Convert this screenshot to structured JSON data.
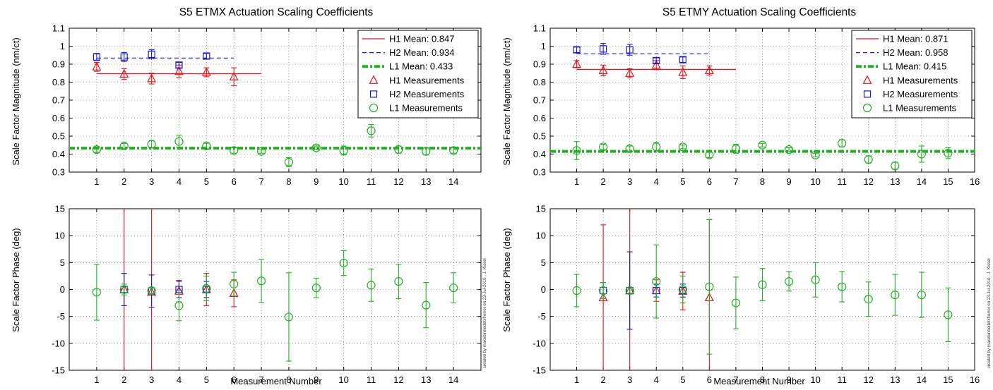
{
  "colors": {
    "H1": "#e8141c",
    "H2": "#1a1ad9",
    "L1": "#22b022"
  },
  "charts": {
    "x": {
      "title": "S5 ETMX Actuation Scaling Coefficients",
      "xlabel": "Measurement Number",
      "xticks": [
        "1",
        "2",
        "3",
        "4",
        "5",
        "6",
        "7",
        "8",
        "9",
        "10",
        "11",
        "12",
        "13",
        "14"
      ],
      "xlim": [
        0,
        15
      ],
      "credit": "created by makebinnedetxfrerror on 23-Jul-2010 , J. Kissel"
    },
    "y": {
      "title": "S5 ETMY Actuation Scaling Coefficients",
      "xlabel": "Measurement Number",
      "xticks": [
        "1",
        "2",
        "3",
        "4",
        "5",
        "6",
        "7",
        "8",
        "9",
        "10",
        "11",
        "12",
        "13",
        "14",
        "15",
        "16"
      ],
      "xlim": [
        0,
        16
      ],
      "credit": "created by makebinnedetxfrerror on 23-Jul-2010 , J. Kissel"
    }
  },
  "chart_data": [
    {
      "type": "scatter",
      "title": "S5 ETMX Actuation Scaling Coefficients",
      "panel": "magnitude",
      "xlabel": "",
      "ylabel": "Scale Factor Magnitude (nm/ct)",
      "xlim": [
        0,
        15
      ],
      "ylim": [
        0.3,
        1.1
      ],
      "yticks": [
        "0.3",
        "0.4",
        "0.5",
        "0.6",
        "0.7",
        "0.8",
        "0.9",
        "1",
        "1.1"
      ],
      "grid": true,
      "legend_position": "top-right",
      "legend": [
        "H1 Mean: 0.847",
        "H2 Mean: 0.934",
        "L1 Mean: 0.433",
        "H1 Measurements",
        "H2 Measurements",
        "L1 Measurements"
      ],
      "means": [
        {
          "name": "H1 Mean: 0.847",
          "value": 0.847,
          "x_range": [
            1,
            7
          ],
          "style": "solid"
        },
        {
          "name": "H2 Mean: 0.934",
          "value": 0.934,
          "x_range": [
            1,
            6
          ],
          "style": "dashed"
        },
        {
          "name": "L1 Mean: 0.433",
          "value": 0.433,
          "x_range": [
            0,
            15
          ],
          "style": "dashdot"
        }
      ],
      "series": [
        {
          "name": "H1 Measurements",
          "marker": "triangle",
          "x": [
            1,
            2,
            3,
            4,
            5,
            6
          ],
          "y": [
            0.885,
            0.845,
            0.82,
            0.86,
            0.855,
            0.83
          ],
          "err": [
            0.025,
            0.03,
            0.03,
            0.035,
            0.025,
            0.05
          ]
        },
        {
          "name": "H2 Measurements",
          "marker": "square",
          "x": [
            1,
            2,
            3,
            4,
            5
          ],
          "y": [
            0.94,
            0.94,
            0.955,
            0.895,
            0.945
          ],
          "err": [
            0.02,
            0.025,
            0.025,
            0.015,
            0.015
          ]
        },
        {
          "name": "L1 Measurements",
          "marker": "circle",
          "x": [
            1,
            2,
            3,
            4,
            5,
            6,
            7,
            8,
            9,
            10,
            11,
            12,
            13,
            14
          ],
          "y": [
            0.425,
            0.445,
            0.455,
            0.47,
            0.445,
            0.42,
            0.415,
            0.355,
            0.435,
            0.42,
            0.53,
            0.425,
            0.415,
            0.42
          ],
          "err": [
            0.015,
            0.015,
            0.02,
            0.035,
            0.015,
            0.015,
            0.01,
            0.025,
            0.01,
            0.025,
            0.035,
            0.02,
            0.02,
            0.015
          ]
        }
      ]
    },
    {
      "type": "scatter",
      "title": "",
      "panel": "phase",
      "xlabel": "Measurement Number",
      "ylabel": "Scale Factor Phase (deg)",
      "xlim": [
        0,
        15
      ],
      "ylim": [
        -15,
        15
      ],
      "yticks": [
        "-15",
        "-10",
        "-5",
        "0",
        "5",
        "10",
        "15"
      ],
      "grid": true,
      "series": [
        {
          "name": "H1 Measurements",
          "marker": "triangle",
          "x": [
            2,
            3,
            4,
            5,
            6
          ],
          "y": [
            0,
            -0.5,
            -0.3,
            0,
            -0.7
          ],
          "err": [
            16,
            16,
            2,
            3,
            2.5
          ]
        },
        {
          "name": "H2 Measurements",
          "marker": "square",
          "x": [
            2,
            3,
            4,
            5
          ],
          "y": [
            0,
            -0.3,
            0,
            0
          ],
          "err": [
            3,
            3,
            1.5,
            1.5
          ]
        },
        {
          "name": "L1 Measurements",
          "marker": "circle",
          "x": [
            1,
            2,
            3,
            4,
            5,
            6,
            7,
            8,
            9,
            10,
            11,
            12,
            13,
            14
          ],
          "y": [
            -0.5,
            0,
            -0.2,
            -3,
            0.2,
            1,
            1.6,
            -5.1,
            0.3,
            4.9,
            0.8,
            1.5,
            -2.9,
            0.3
          ],
          "err": [
            5.2,
            1,
            0.5,
            2.8,
            2.3,
            2.2,
            4,
            8.2,
            1.8,
            2.3,
            3,
            3.2,
            4.2,
            2.8
          ]
        }
      ]
    },
    {
      "type": "scatter",
      "title": "S5 ETMY Actuation Scaling Coefficients",
      "panel": "magnitude",
      "xlabel": "",
      "ylabel": "Scale Factor Magnitude (nm/ct)",
      "xlim": [
        0,
        16
      ],
      "ylim": [
        0.3,
        1.1
      ],
      "yticks": [
        "0.3",
        "0.4",
        "0.5",
        "0.6",
        "0.7",
        "0.8",
        "0.9",
        "1",
        "1.1"
      ],
      "grid": true,
      "legend_position": "top-right",
      "legend": [
        "H1 Mean: 0.871",
        "H2 Mean: 0.958",
        "L1 Mean: 0.415",
        "H1 Measurements",
        "H2 Measurements",
        "L1 Measurements"
      ],
      "means": [
        {
          "name": "H1 Mean: 0.871",
          "value": 0.871,
          "x_range": [
            1,
            7
          ],
          "style": "solid"
        },
        {
          "name": "H2 Mean: 0.958",
          "value": 0.958,
          "x_range": [
            1,
            6
          ],
          "style": "dashed"
        },
        {
          "name": "L1 Mean: 0.415",
          "value": 0.415,
          "x_range": [
            0,
            16
          ],
          "style": "dashdot"
        }
      ],
      "series": [
        {
          "name": "H1 Measurements",
          "marker": "triangle",
          "x": [
            1,
            2,
            3,
            4,
            5,
            6
          ],
          "y": [
            0.9,
            0.865,
            0.85,
            0.895,
            0.855,
            0.865
          ],
          "err": [
            0.02,
            0.03,
            0.025,
            0.025,
            0.035,
            0.025
          ]
        },
        {
          "name": "H2 Measurements",
          "marker": "square",
          "x": [
            1,
            2,
            3,
            4,
            5
          ],
          "y": [
            0.98,
            0.985,
            0.98,
            0.92,
            0.925
          ],
          "err": [
            0.015,
            0.03,
            0.03,
            0.015,
            0.015
          ]
        },
        {
          "name": "L1 Measurements",
          "marker": "circle",
          "x": [
            1,
            2,
            3,
            4,
            5,
            6,
            7,
            8,
            9,
            10,
            11,
            12,
            13,
            14,
            15
          ],
          "y": [
            0.42,
            0.44,
            0.43,
            0.44,
            0.44,
            0.395,
            0.43,
            0.45,
            0.425,
            0.395,
            0.46,
            0.37,
            0.335,
            0.4,
            0.405
          ],
          "err": [
            0.05,
            0.015,
            0.015,
            0.025,
            0.01,
            0.015,
            0.025,
            0.01,
            0.01,
            0.01,
            0.02,
            0.02,
            0.02,
            0.045,
            0.03
          ]
        }
      ]
    },
    {
      "type": "scatter",
      "title": "",
      "panel": "phase",
      "xlabel": "Measurement Number",
      "ylabel": "Scale Factor Phase (deg)",
      "xlim": [
        0,
        16
      ],
      "ylim": [
        -15,
        15
      ],
      "yticks": [
        "-15",
        "-10",
        "-5",
        "0",
        "5",
        "10",
        "15"
      ],
      "grid": true,
      "series": [
        {
          "name": "H1 Measurements",
          "marker": "triangle",
          "x": [
            2,
            3,
            4,
            5,
            6
          ],
          "y": [
            -1.5,
            -0.2,
            -0.2,
            -0.3,
            -1.5
          ],
          "err": [
            13.5,
            16,
            2,
            3.5,
            14.5
          ]
        },
        {
          "name": "H2 Measurements",
          "marker": "square",
          "x": [
            2,
            3,
            4,
            5
          ],
          "y": [
            -0.2,
            -0.2,
            -0.2,
            -0.2
          ],
          "err": [
            1.5,
            7.2,
            1.2,
            1.2
          ]
        },
        {
          "name": "L1 Measurements",
          "marker": "circle",
          "x": [
            1,
            2,
            3,
            4,
            5,
            6,
            7,
            8,
            9,
            10,
            11,
            12,
            13,
            14,
            15
          ],
          "y": [
            -0.2,
            -0.2,
            -0.2,
            1.5,
            0,
            0.5,
            -2.5,
            0.9,
            1.5,
            1.8,
            0.5,
            -1.8,
            -1,
            -1,
            -4.7
          ],
          "err": [
            3,
            1.5,
            0.5,
            6.8,
            2.5,
            12.5,
            4.8,
            3,
            1.8,
            3.2,
            2.8,
            3.2,
            3.8,
            4.2,
            5
          ]
        }
      ]
    }
  ]
}
